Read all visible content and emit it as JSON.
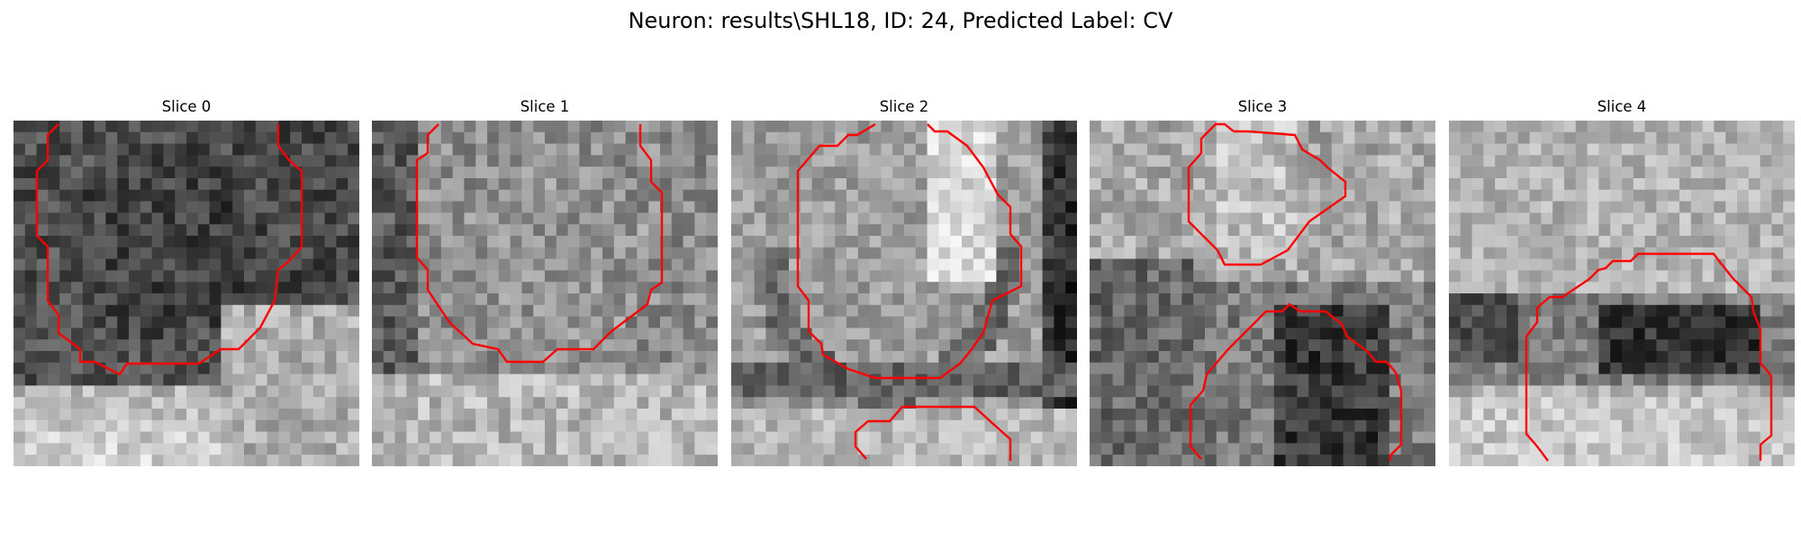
{
  "figure": {
    "title": "Neuron: results\\SHL18, ID: 24, Predicted Label: CV"
  },
  "style": {
    "contour_color": "#ff0000"
  },
  "slices": [
    {
      "title": "Slice 0",
      "image": {
        "base_level": 0.36,
        "gradient": "dark-top-light-bottom",
        "variation": 0.14,
        "seed": 11
      },
      "contour_count": 1
    },
    {
      "title": "Slice 1",
      "image": {
        "base_level": 0.58,
        "gradient": "mid-gray",
        "variation": 0.15,
        "seed": 23
      },
      "contour_count": 1
    },
    {
      "title": "Slice 2",
      "image": {
        "base_level": 0.62,
        "gradient": "light-with-dark-right-edge",
        "variation": 0.13,
        "seed": 37
      },
      "contour_count": 2
    },
    {
      "title": "Slice 3",
      "image": {
        "base_level": 0.6,
        "gradient": "light-top-dark-bottom",
        "variation": 0.15,
        "seed": 41
      },
      "contour_count": 2
    },
    {
      "title": "Slice 4",
      "image": {
        "base_level": 0.63,
        "gradient": "light-with-dark-middle-band",
        "variation": 0.13,
        "seed": 53
      },
      "contour_count": 1
    }
  ]
}
